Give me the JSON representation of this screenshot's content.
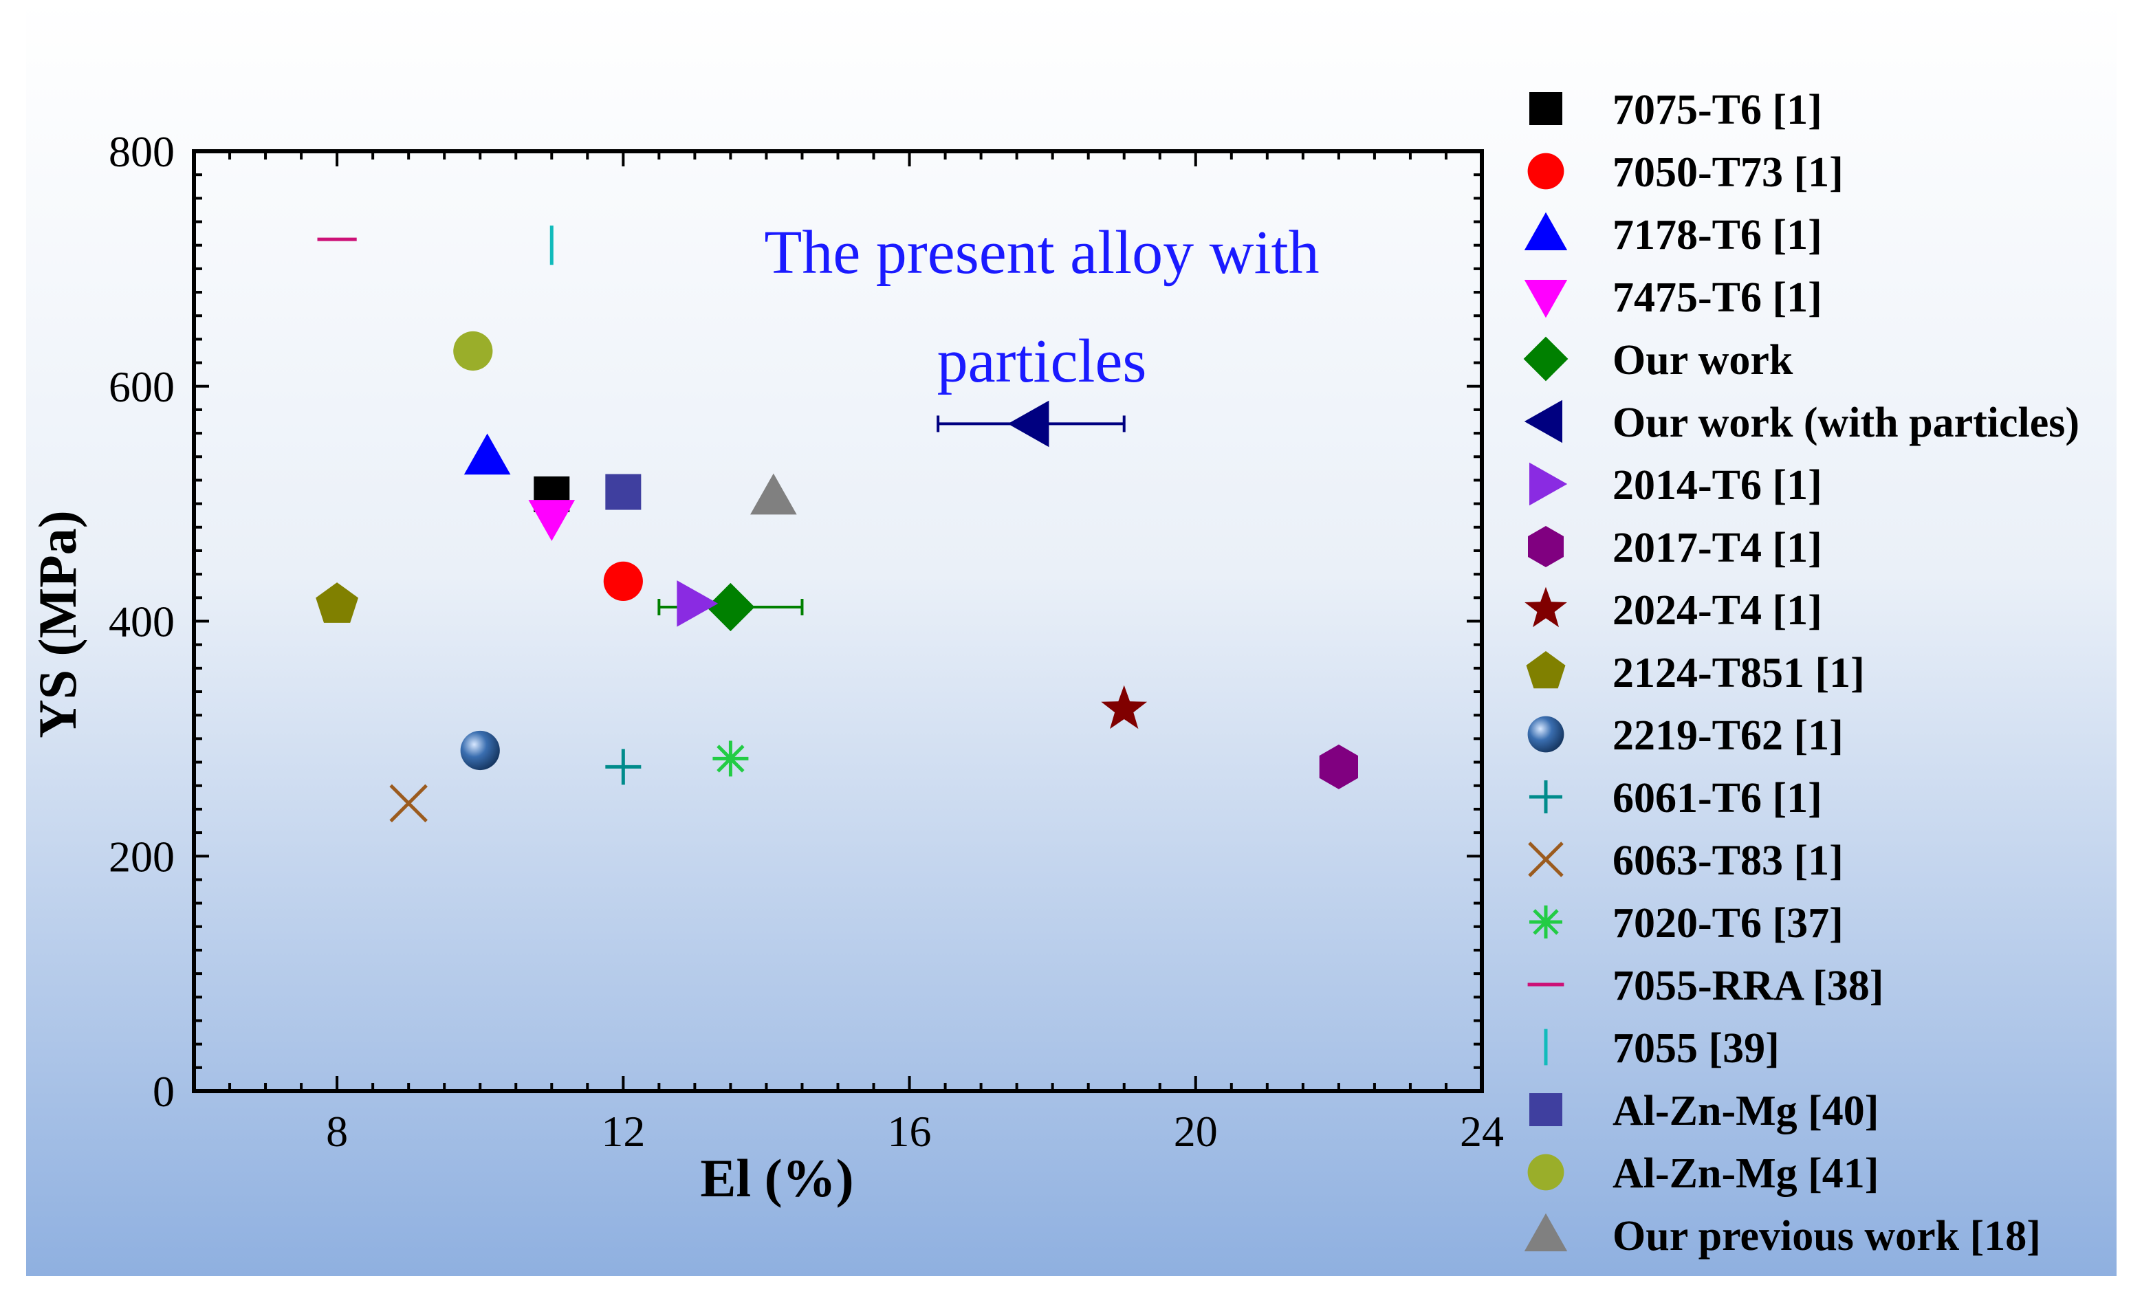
{
  "chart_data": {
    "type": "scatter",
    "title": "",
    "xlabel": "El (%)",
    "ylabel": "YS (MPa)",
    "xlim": [
      6,
      24
    ],
    "ylim": [
      0,
      800
    ],
    "xticks": [
      8,
      12,
      16,
      20,
      24
    ],
    "yticks": [
      0,
      200,
      400,
      600,
      800
    ],
    "annotation": {
      "line1": "The present alloy with",
      "line2": "particles",
      "color": "#1a1aff"
    },
    "legend_position": "right",
    "series": [
      {
        "name": "7075-T6 [1]",
        "marker": "square",
        "color": "#000000",
        "x": 11,
        "y": 508
      },
      {
        "name": "7050-T73 [1]",
        "marker": "circle",
        "color": "#ff0000",
        "x": 12,
        "y": 434
      },
      {
        "name": "7178-T6 [1]",
        "marker": "triangle-up",
        "color": "#0000ff",
        "x": 10.1,
        "y": 540
      },
      {
        "name": "7475-T6 [1]",
        "marker": "triangle-down",
        "color": "#ff00ff",
        "x": 11,
        "y": 488
      },
      {
        "name": "Our work",
        "marker": "diamond",
        "color": "#008000",
        "x": 13.5,
        "y": 412,
        "xerr": [
          12.5,
          14.5
        ]
      },
      {
        "name": "Our work (with particles)",
        "marker": "triangle-left",
        "color": "#000080",
        "x": 17.7,
        "y": 568,
        "xerr": [
          16.4,
          19
        ]
      },
      {
        "name": "2014-T6 [1]",
        "marker": "triangle-right",
        "color": "#8a2be2",
        "x": 13,
        "y": 415
      },
      {
        "name": "2017-T4 [1]",
        "marker": "hexagon",
        "color": "#800080",
        "x": 22,
        "y": 276
      },
      {
        "name": "2024-T4 [1]",
        "marker": "star",
        "color": "#800000",
        "x": 19,
        "y": 325
      },
      {
        "name": "2124-T851 [1]",
        "marker": "pentagon",
        "color": "#808000",
        "x": 8,
        "y": 414
      },
      {
        "name": "2219-T62 [1]",
        "marker": "sphere",
        "color": "#2f5f9f",
        "x": 10,
        "y": 290
      },
      {
        "name": "6061-T6 [1]",
        "marker": "plus",
        "color": "#008b8b",
        "x": 12,
        "y": 276
      },
      {
        "name": "6063-T83 [1]",
        "marker": "cross",
        "color": "#9b5b1e",
        "x": 9,
        "y": 245
      },
      {
        "name": "7020-T6 [37]",
        "marker": "asterisk",
        "color": "#22cc44",
        "x": 13.5,
        "y": 283
      },
      {
        "name": "7055-RRA [38]",
        "marker": "hline",
        "color": "#cc1177",
        "x": 8,
        "y": 725
      },
      {
        "name": "7055  [39]",
        "marker": "vline",
        "color": "#11bbbb",
        "x": 11,
        "y": 720
      },
      {
        "name": "Al-Zn-Mg [40]",
        "marker": "square",
        "color": "#3f3f9f",
        "x": 12,
        "y": 510
      },
      {
        "name": "Al-Zn-Mg [41]",
        "marker": "circle",
        "color": "#9aae2a",
        "x": 9.9,
        "y": 630
      },
      {
        "name": "Our previous work [18]",
        "marker": "triangle-up",
        "color": "#808080",
        "x": 14.1,
        "y": 506
      }
    ]
  },
  "colors": {
    "background_top": "#ffffff",
    "background_bottom": "#8fb0e0",
    "axis": "#000000"
  }
}
